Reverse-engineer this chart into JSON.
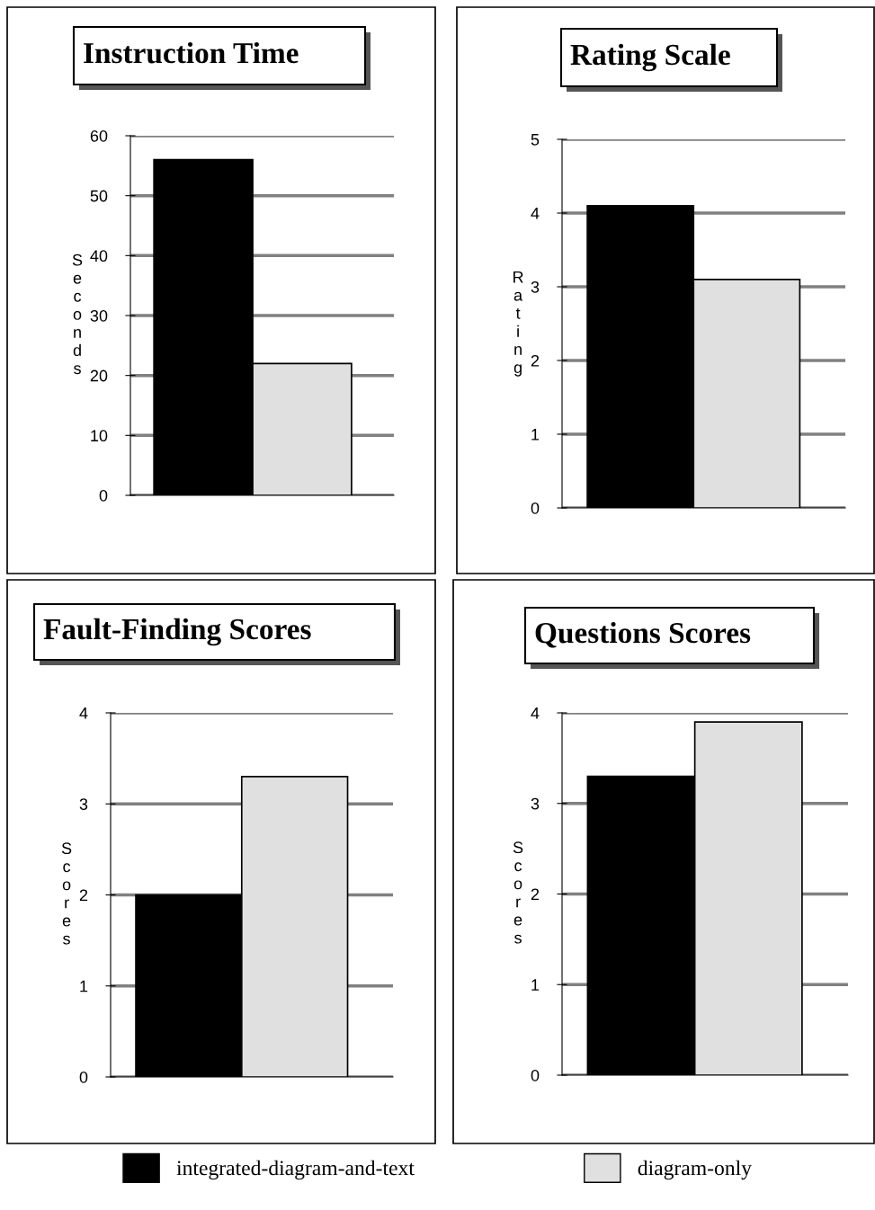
{
  "chart_data": [
    {
      "type": "bar",
      "title": "Instruction Time",
      "ylabel": "Seconds",
      "categories": [
        null
      ],
      "ylim": [
        0,
        60
      ],
      "yticks": [
        0,
        10,
        20,
        30,
        40,
        50,
        60
      ],
      "grid": "y",
      "tick_labels": "y",
      "legend": "bottom",
      "series": [
        {
          "name": "integrated-diagram-and-text",
          "color": "#000000",
          "values": [
            56
          ]
        },
        {
          "name": "diagram-only",
          "color": "#e0e0e0",
          "values": [
            22
          ]
        }
      ]
    },
    {
      "type": "bar",
      "title": "Rating Scale",
      "ylabel": "Rating",
      "categories": [
        null
      ],
      "ylim": [
        0,
        5
      ],
      "yticks": [
        0,
        1,
        2,
        3,
        4,
        5
      ],
      "grid": "y",
      "tick_labels": "y",
      "series": [
        {
          "color": "#000000",
          "values": [
            4.1
          ]
        },
        {
          "color": "#e0e0e0",
          "values": [
            3.1
          ]
        }
      ]
    },
    {
      "type": "bar",
      "title": "Fault-Finding Scores",
      "ylabel": "Scores",
      "categories": [
        null
      ],
      "ylim": [
        0,
        4
      ],
      "yticks": [
        0,
        1,
        2,
        3,
        4
      ],
      "grid": "y",
      "tick_labels": "y",
      "series": [
        {
          "color": "#000000",
          "values": [
            2.0
          ]
        },
        {
          "color": "#e0e0e0",
          "values": [
            3.3
          ]
        }
      ]
    },
    {
      "type": "bar",
      "title": "Questions Scores",
      "ylabel": "Scores",
      "categories": [
        null
      ],
      "ylim": [
        0,
        4
      ],
      "yticks": [
        0,
        1,
        2,
        3,
        4
      ],
      "grid": "y",
      "tick_labels": "y",
      "series": [
        {
          "color": "#000000",
          "values": [
            3.3
          ]
        },
        {
          "color": "#e0e0e0",
          "values": [
            3.9
          ]
        }
      ]
    }
  ]
}
